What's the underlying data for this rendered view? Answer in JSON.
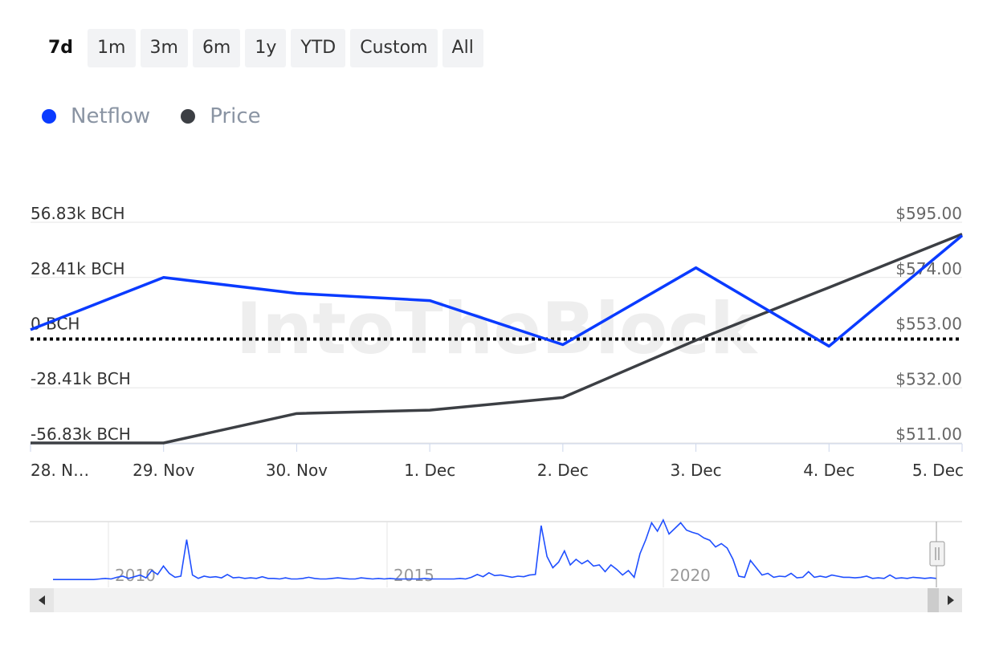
{
  "range_selector": {
    "buttons": [
      "7d",
      "1m",
      "3m",
      "6m",
      "1y",
      "YTD",
      "Custom",
      "All"
    ],
    "active": "7d"
  },
  "colors": {
    "netflow": "#0a3bff",
    "price": "#3c3f44",
    "zero_line": "#000000",
    "grid": "#e6e6e6",
    "axis_text": "#333333",
    "right_axis_text": "#666666",
    "navigator_line": "#1f4fff",
    "watermark": "#eeeeee"
  },
  "watermark": "IntoTheBlock",
  "chart_data": {
    "type": "line",
    "x_labels": [
      "28. N…",
      "29. Nov",
      "30. Nov",
      "1. Dec",
      "2. Dec",
      "3. Dec",
      "4. Dec",
      "5. Dec"
    ],
    "series": [
      {
        "name": "Netflow",
        "axis": "left",
        "unit": "BCH",
        "values": [
          1500,
          28400,
          20200,
          16500,
          -6200,
          33400,
          -7000,
          50000
        ]
      },
      {
        "name": "Price",
        "axis": "right",
        "unit": "USD",
        "values": [
          511.0,
          511.0,
          522.2,
          523.5,
          528.3,
          550.1,
          570.2,
          590.5
        ]
      }
    ],
    "left_axis": {
      "ticks": [
        "56.83k BCH",
        "28.41k BCH",
        "0 BCH",
        "-28.41k BCH",
        "-56.83k BCH"
      ],
      "tick_values": [
        56830,
        28410,
        0,
        -28410,
        -56830
      ],
      "range": [
        -56830,
        56830
      ]
    },
    "right_axis": {
      "ticks": [
        "$595.00",
        "$574.00",
        "$553.00",
        "$532.00",
        "$511.00"
      ],
      "tick_values": [
        595,
        574,
        553,
        532,
        511
      ],
      "range": [
        511,
        595
      ]
    },
    "zero_line": true,
    "grid": true,
    "legend": "top-left"
  },
  "navigator": {
    "year_labels": [
      "2010",
      "2015",
      "2020"
    ],
    "values": [
      0.04,
      0.04,
      0.04,
      0.04,
      0.04,
      0.04,
      0.04,
      0.04,
      0.05,
      0.06,
      0.05,
      0.08,
      0.1,
      0.06,
      0.09,
      0.12,
      0.07,
      0.2,
      0.13,
      0.28,
      0.15,
      0.08,
      0.1,
      0.75,
      0.12,
      0.06,
      0.1,
      0.08,
      0.09,
      0.07,
      0.13,
      0.07,
      0.08,
      0.06,
      0.07,
      0.06,
      0.09,
      0.06,
      0.06,
      0.05,
      0.07,
      0.05,
      0.05,
      0.06,
      0.08,
      0.06,
      0.05,
      0.05,
      0.06,
      0.07,
      0.06,
      0.05,
      0.05,
      0.07,
      0.06,
      0.05,
      0.06,
      0.05,
      0.06,
      0.05,
      0.05,
      0.05,
      0.05,
      0.05,
      0.06,
      0.05,
      0.05,
      0.05,
      0.05,
      0.05,
      0.06,
      0.05,
      0.08,
      0.13,
      0.09,
      0.16,
      0.11,
      0.12,
      0.1,
      0.08,
      0.1,
      0.09,
      0.12,
      0.13,
      1.0,
      0.45,
      0.25,
      0.35,
      0.55,
      0.3,
      0.4,
      0.32,
      0.38,
      0.28,
      0.3,
      0.18,
      0.3,
      0.22,
      0.12,
      0.2,
      0.08,
      0.5,
      0.75,
      1.05,
      0.9,
      1.1,
      0.85,
      0.95,
      1.05,
      0.92,
      0.88,
      0.85,
      0.78,
      0.74,
      0.62,
      0.68,
      0.6,
      0.4,
      0.1,
      0.08,
      0.38,
      0.25,
      0.12,
      0.15,
      0.08,
      0.1,
      0.09,
      0.15,
      0.07,
      0.08,
      0.18,
      0.08,
      0.1,
      0.08,
      0.12,
      0.1,
      0.08,
      0.08,
      0.07,
      0.08,
      0.1,
      0.06,
      0.07,
      0.06,
      0.12,
      0.06,
      0.07,
      0.06,
      0.08,
      0.07,
      0.06,
      0.07,
      0.06
    ]
  }
}
